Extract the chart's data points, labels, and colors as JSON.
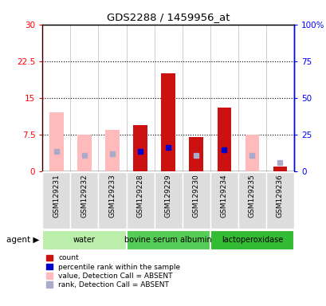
{
  "title": "GDS2288 / 1459956_at",
  "samples": [
    "GSM129231",
    "GSM129232",
    "GSM129233",
    "GSM129228",
    "GSM129229",
    "GSM129230",
    "GSM129234",
    "GSM129235",
    "GSM129236"
  ],
  "agents": [
    {
      "label": "water",
      "start": 0,
      "end": 3,
      "color": "#bbeeaa"
    },
    {
      "label": "bovine serum albumin",
      "start": 3,
      "end": 6,
      "color": "#55cc55"
    },
    {
      "label": "lactoperoxidase",
      "start": 6,
      "end": 9,
      "color": "#33bb33"
    }
  ],
  "red_bars": [
    null,
    null,
    null,
    9.5,
    20.0,
    7.0,
    13.0,
    null,
    1.0
  ],
  "pink_bars": [
    12.0,
    7.5,
    8.5,
    null,
    null,
    null,
    null,
    7.5,
    null
  ],
  "blue_squares": [
    null,
    null,
    null,
    13.5,
    16.2,
    null,
    14.5,
    null,
    null
  ],
  "light_blue_squares": [
    13.5,
    11.0,
    12.0,
    null,
    null,
    11.0,
    null,
    11.0,
    6.0
  ],
  "ylim_left": [
    0,
    30
  ],
  "ylim_right": [
    0,
    100
  ],
  "yticks_left": [
    0,
    7.5,
    15,
    22.5,
    30
  ],
  "ytick_labels_left": [
    "0",
    "7.5",
    "15",
    "22.5",
    "30"
  ],
  "yticks_right": [
    0,
    25,
    50,
    75,
    100
  ],
  "ytick_labels_right": [
    "0",
    "25",
    "50",
    "75",
    "100%"
  ],
  "hlines": [
    7.5,
    15.0,
    22.5
  ],
  "bar_width": 0.5,
  "red_color": "#cc1111",
  "pink_color": "#ffbbbb",
  "blue_color": "#0000cc",
  "light_blue_color": "#aaaacc",
  "legend_items": [
    {
      "color": "#cc1111",
      "label": "count"
    },
    {
      "color": "#0000cc",
      "label": "percentile rank within the sample"
    },
    {
      "color": "#ffbbbb",
      "label": "value, Detection Call = ABSENT"
    },
    {
      "color": "#aaaacc",
      "label": "rank, Detection Call = ABSENT"
    }
  ],
  "bg_color": "#ffffff",
  "gray_box_color": "#dddddd",
  "agent_label": "agent ▶"
}
